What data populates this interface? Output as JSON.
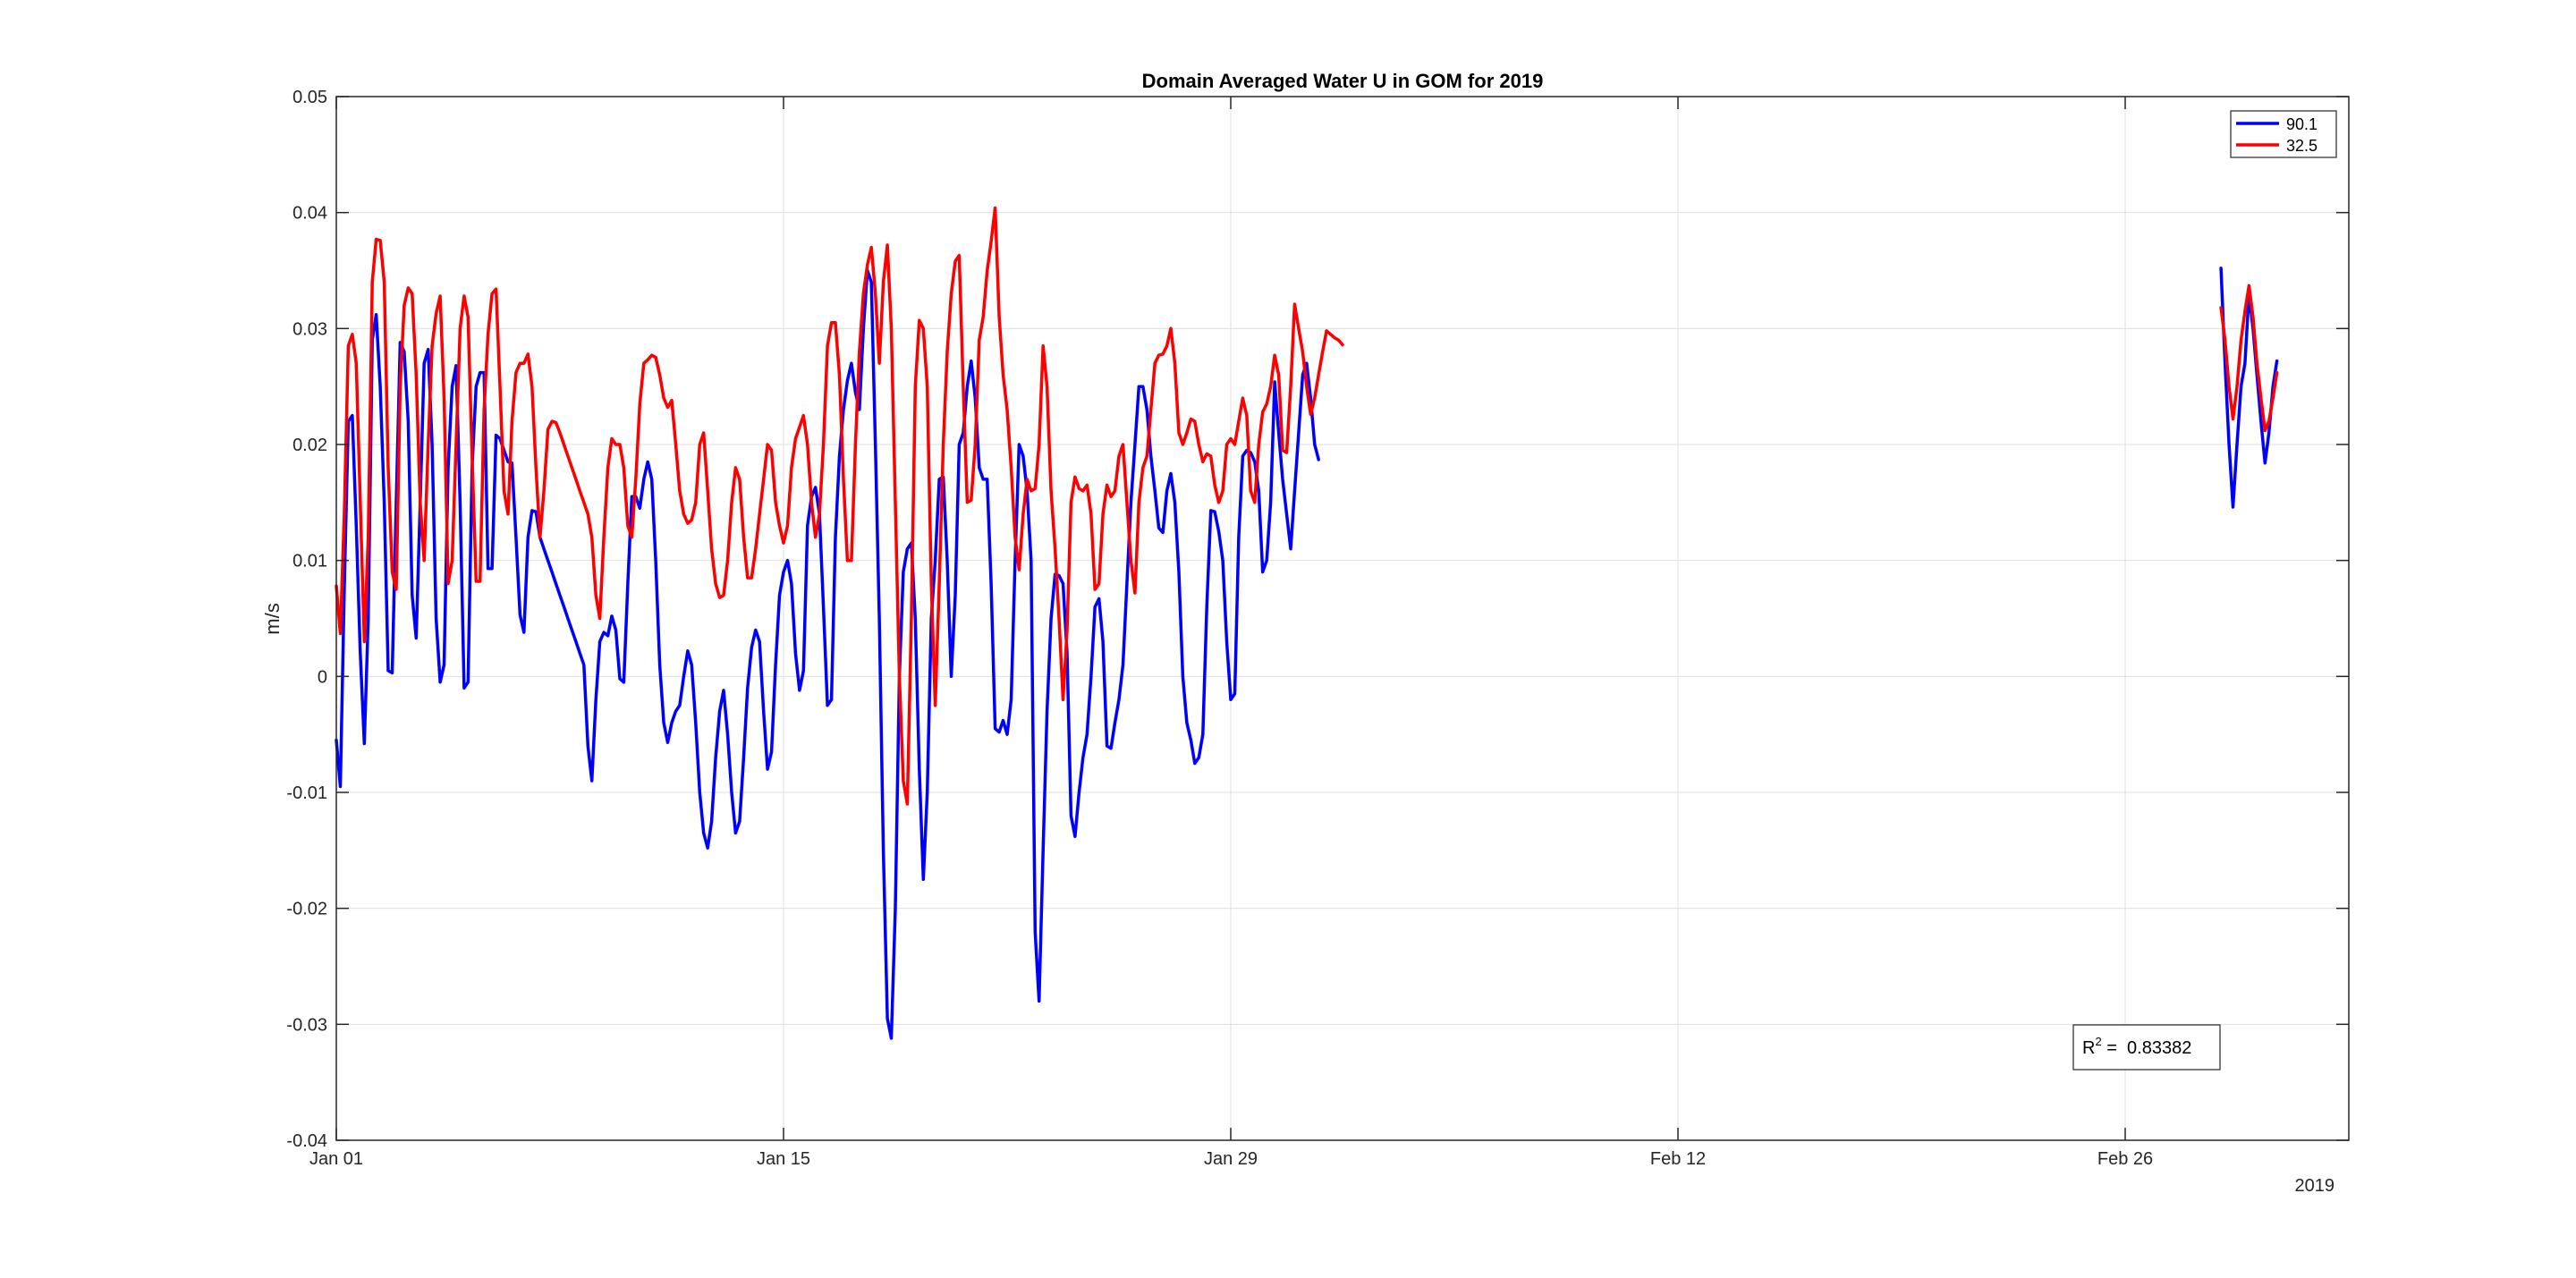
{
  "chart_data": {
    "type": "line",
    "title": "Domain Averaged Water U in GOM for 2019",
    "xlabel": "",
    "ylabel": "m/s",
    "x_axis_secondary_label": "2019",
    "x_tick_labels": [
      "Jan 01",
      "Jan 15",
      "Jan 29",
      "Feb 12",
      "Feb 26"
    ],
    "x_tick_days": [
      0,
      14,
      28,
      42,
      56
    ],
    "xlim_days": [
      0,
      63
    ],
    "ylim": [
      -0.04,
      0.05
    ],
    "y_ticks": [
      -0.04,
      -0.03,
      -0.02,
      -0.01,
      0,
      0.01,
      0.02,
      0.03,
      0.04,
      0.05
    ],
    "y_tick_labels": [
      "-0.04",
      "-0.03",
      "-0.02",
      "-0.01",
      "0",
      "0.01",
      "0.02",
      "0.03",
      "0.04",
      "0.05"
    ],
    "grid": true,
    "legend_position": "top-right",
    "annotation": {
      "label": "R",
      "superscript": "2",
      "text": " =  0.83382"
    },
    "series": [
      {
        "name": "90.1",
        "color": "#0000ff",
        "segments": [
          {
            "start": "2019-01-01",
            "step_hours": 3,
            "values": [
              -0.0055,
              -0.0095,
              0.0075,
              0.022,
              0.0225,
              0.013,
              0.002,
              -0.0058,
              0.005,
              0.029,
              0.0312,
              0.025,
              0.015,
              0.0005,
              0.0003,
              0.015,
              0.0288,
              0.028,
              0.022,
              0.007,
              0.0033,
              0.015,
              0.027,
              0.0282,
              0.02,
              0.005,
              -0.0005,
              0.001,
              0.018,
              0.025,
              0.0268,
              0.015,
              -0.001,
              -0.0005,
              0.018,
              0.025,
              0.0262,
              0.0262,
              0.0093,
              0.0093,
              0.0208,
              0.0205,
              0.0195,
              0.0185,
              0.0184,
              0.012,
              0.0053,
              0.0038,
              0.012,
              0.0143,
              0.0142,
              0.012,
              0.011,
              0.01,
              0.009,
              0.008,
              0.007,
              0.006,
              0.005,
              0.004,
              0.003,
              0.002,
              0.001,
              -0.006,
              -0.009,
              -0.002,
              0.003,
              0.0038,
              0.0035,
              0.0052,
              0.004,
              -0.0002,
              -0.0005,
              0.008,
              0.0155,
              0.0155,
              0.0145,
              0.017,
              0.0185,
              0.017,
              0.01,
              0.001,
              -0.004,
              -0.0057,
              -0.004,
              -0.003,
              -0.0025,
              0.0,
              0.0022,
              0.001,
              -0.004,
              -0.01,
              -0.0135,
              -0.0148,
              -0.0125,
              -0.007,
              -0.003,
              -0.0012,
              -0.005,
              -0.01,
              -0.0135,
              -0.0125,
              -0.007,
              -0.001,
              0.0025,
              0.004,
              0.003,
              -0.003,
              -0.008,
              -0.0065,
              0.001,
              0.007,
              0.009,
              0.01,
              0.008,
              0.002,
              -0.0012,
              0.0005,
              0.013,
              0.0155,
              0.0163,
              0.014,
              0.006,
              -0.0025,
              -0.002,
              0.012,
              0.019,
              0.023,
              0.0255,
              0.027,
              0.0245,
              0.023,
              0.03,
              0.035,
              0.034,
              0.02,
              0.005,
              -0.015,
              -0.0295,
              -0.0312,
              -0.02,
              0.0,
              0.009,
              0.011,
              0.0115,
              0.005,
              -0.008,
              -0.0175,
              -0.01,
              0.005,
              0.01,
              0.017,
              0.0172,
              0.01,
              0.0,
              0.007,
              0.02,
              0.021,
              0.025,
              0.0272,
              0.024,
              0.018,
              0.017,
              0.017,
              0.008,
              -0.0045,
              -0.0048,
              -0.0038,
              -0.005,
              -0.002,
              0.01,
              0.02,
              0.019,
              0.016,
              0.01,
              -0.022,
              -0.028,
              -0.015,
              -0.003,
              0.005,
              0.0088,
              0.0087,
              0.008,
              0.002,
              -0.012,
              -0.0138,
              -0.01,
              -0.007,
              -0.005,
              0.0,
              0.006,
              0.0067,
              0.003,
              -0.006,
              -0.0062,
              -0.004,
              -0.002,
              0.001,
              0.008,
              0.015,
              0.02,
              0.025,
              0.025,
              0.023,
              0.019,
              0.016,
              0.0128,
              0.0124,
              0.016,
              0.0175,
              0.015,
              0.009,
              0.0,
              -0.004,
              -0.0055,
              -0.0075,
              -0.007,
              -0.005,
              0.006,
              0.0143,
              0.0142,
              0.0125,
              0.01,
              0.003,
              -0.002,
              -0.0015,
              0.012,
              0.019,
              0.0195,
              0.0193,
              0.0185,
              0.016,
              0.009,
              0.01,
              0.015,
              0.0254,
              0.021,
              0.017,
              0.014,
              0.011,
              0.016,
              0.021,
              0.026,
              0.027,
              0.024,
              0.02,
              0.0187
            ]
          },
          {
            "start": "2019-03-01",
            "step_hours": 3,
            "values": [
              0.0352,
              0.027,
              0.02,
              0.0146,
              0.02,
              0.025,
              0.027,
              0.033,
              0.03,
              0.026,
              0.022,
              0.0184,
              0.021,
              0.025,
              0.0272
            ]
          }
        ]
      },
      {
        "name": "32.5",
        "color": "#ff0000",
        "segments": [
          {
            "start": "2019-01-01",
            "step_hours": 3,
            "values": [
              0.0078,
              0.0037,
              0.014,
              0.0285,
              0.0295,
              0.027,
              0.015,
              0.003,
              0.012,
              0.034,
              0.0377,
              0.0376,
              0.034,
              0.018,
              0.009,
              0.0075,
              0.025,
              0.032,
              0.0335,
              0.033,
              0.026,
              0.015,
              0.01,
              0.02,
              0.0285,
              0.0313,
              0.0328,
              0.024,
              0.008,
              0.01,
              0.02,
              0.03,
              0.0328,
              0.031,
              0.019,
              0.0082,
              0.0082,
              0.023,
              0.0295,
              0.033,
              0.0334,
              0.025,
              0.016,
              0.014,
              0.022,
              0.0262,
              0.027,
              0.027,
              0.0278,
              0.025,
              0.018,
              0.012,
              0.016,
              0.0213,
              0.022,
              0.0219,
              0.021,
              0.02,
              0.019,
              0.018,
              0.017,
              0.016,
              0.015,
              0.014,
              0.012,
              0.007,
              0.005,
              0.012,
              0.018,
              0.0205,
              0.02,
              0.02,
              0.018,
              0.013,
              0.012,
              0.017,
              0.0235,
              0.027,
              0.0273,
              0.0277,
              0.0275,
              0.026,
              0.024,
              0.0232,
              0.0238,
              0.02,
              0.016,
              0.014,
              0.0132,
              0.0135,
              0.015,
              0.02,
              0.021,
              0.016,
              0.011,
              0.008,
              0.0068,
              0.007,
              0.01,
              0.015,
              0.018,
              0.017,
              0.012,
              0.0085,
              0.0085,
              0.011,
              0.014,
              0.017,
              0.02,
              0.0195,
              0.015,
              0.013,
              0.0115,
              0.013,
              0.018,
              0.0205,
              0.0215,
              0.0225,
              0.02,
              0.015,
              0.012,
              0.014,
              0.02,
              0.0285,
              0.0305,
              0.0305,
              0.026,
              0.017,
              0.01,
              0.01,
              0.02,
              0.028,
              0.033,
              0.0355,
              0.037,
              0.033,
              0.027,
              0.034,
              0.0372,
              0.03,
              0.015,
              0.0,
              -0.009,
              -0.011,
              0.005,
              0.025,
              0.0307,
              0.03,
              0.025,
              0.008,
              -0.0025,
              0.008,
              0.02,
              0.028,
              0.033,
              0.0358,
              0.0363,
              0.025,
              0.015,
              0.0152,
              0.02,
              0.029,
              0.031,
              0.035,
              0.0375,
              0.0404,
              0.031,
              0.026,
              0.023,
              0.018,
              0.012,
              0.0092,
              0.014,
              0.017,
              0.016,
              0.0162,
              0.02,
              0.0285,
              0.025,
              0.016,
              0.011,
              0.005,
              -0.002,
              0.004,
              0.015,
              0.0172,
              0.0162,
              0.016,
              0.0165,
              0.014,
              0.0075,
              0.008,
              0.014,
              0.0165,
              0.0155,
              0.016,
              0.019,
              0.02,
              0.015,
              0.01,
              0.0072,
              0.015,
              0.018,
              0.019,
              0.023,
              0.027,
              0.0277,
              0.0278,
              0.0285,
              0.03,
              0.027,
              0.021,
              0.02,
              0.021,
              0.0222,
              0.022,
              0.02,
              0.0185,
              0.0192,
              0.019,
              0.0165,
              0.015,
              0.016,
              0.02,
              0.0205,
              0.02,
              0.022,
              0.024,
              0.0225,
              0.016,
              0.015,
              0.02,
              0.0228,
              0.0235,
              0.025,
              0.0277,
              0.026,
              0.0195,
              0.0193,
              0.025,
              0.0321,
              0.03,
              0.028,
              0.025,
              0.0226,
              0.024,
              0.026,
              0.028,
              0.0298,
              0.0295,
              0.0292,
              0.029,
              0.0286
            ]
          },
          {
            "start": "2019-03-01",
            "step_hours": 3,
            "values": [
              0.0318,
              0.029,
              0.025,
              0.0222,
              0.025,
              0.029,
              0.0315,
              0.0337,
              0.031,
              0.027,
              0.024,
              0.0212,
              0.022,
              0.024,
              0.0262
            ]
          }
        ]
      }
    ]
  }
}
